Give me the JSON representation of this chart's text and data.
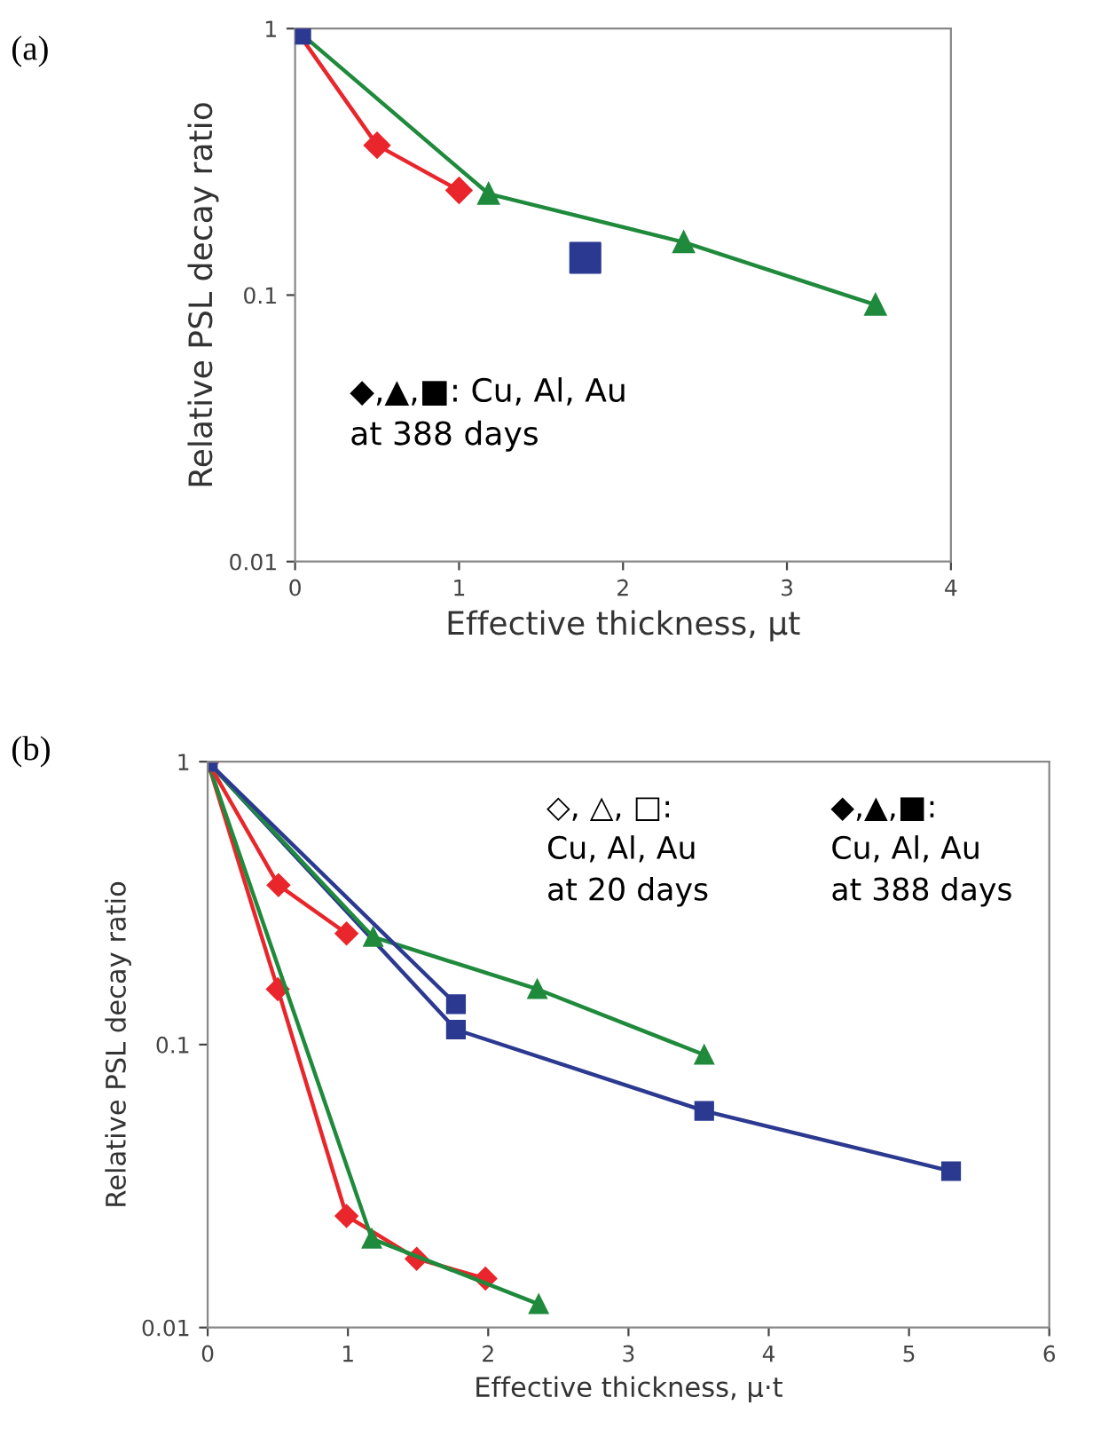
{
  "chart_data": [
    {
      "type": "line",
      "xlabel": "Effective thickness, μt",
      "ylabel": "Relative PSL decay ratio",
      "log": "y",
      "xlim": [
        0,
        4
      ],
      "xticks": [
        0,
        1,
        2,
        3,
        4
      ],
      "ylim": [
        0.01,
        1
      ],
      "yticks": [
        0.01,
        0.1,
        1
      ],
      "grid": false,
      "annotations": [
        "(a)",
        "◆,▲,■: Cu, Al, Au\nat 388 days"
      ],
      "series": [
        {
          "marker": "diamond",
          "color": "#e8262b",
          "x": [
            0,
            0.5,
            1.0
          ],
          "values": [
            1,
            0.365,
            0.247
          ]
        },
        {
          "marker": "triangle",
          "color": "#1f8a3c",
          "x": [
            0,
            1.18,
            2.37,
            3.54
          ],
          "values": [
            1,
            0.24,
            0.158,
            0.092
          ]
        },
        {
          "type": "scatter",
          "marker": "square",
          "color": "#2b3990",
          "x": [
            0,
            1.77
          ],
          "values": [
            1,
            0.138
          ]
        }
      ]
    },
    {
      "type": "line",
      "xlabel": "Effective thickness, μ·t",
      "ylabel": "Relative PSL decay ratio",
      "log": "y",
      "xlim": [
        0,
        6
      ],
      "xticks": [
        0,
        1,
        2,
        3,
        4,
        5,
        6
      ],
      "ylim": [
        0.01,
        1
      ],
      "yticks": [
        0.01,
        0.1,
        1
      ],
      "grid": false,
      "annotations": [
        "(b)",
        "◇, △, □:\nCu, Al, Au\nat 20 days",
        "◆,▲,■:\nCu, Al, Au\nat 388 days"
      ],
      "series": [
        {
          "marker": "diamond",
          "color": "#e8262b",
          "x": [
            0,
            0.5,
            0.99,
            1.49,
            1.98
          ],
          "values": [
            1,
            0.157,
            0.0248,
            0.0175,
            0.0149
          ]
        },
        {
          "marker": "triangle",
          "color": "#1f8a3c",
          "x": [
            0,
            1.17,
            2.36
          ],
          "values": [
            1,
            0.0206,
            0.0121
          ]
        },
        {
          "marker": "square",
          "color": "#2b3990",
          "x": [
            0,
            1.77,
            3.54,
            5.3
          ],
          "values": [
            1,
            0.113,
            0.0583,
            0.0357
          ]
        },
        {
          "marker": "diamond",
          "color": "#e8262b",
          "x": [
            0,
            0.505,
            0.99
          ],
          "values": [
            1,
            0.366,
            0.247
          ]
        },
        {
          "marker": "triangle",
          "color": "#1f8a3c",
          "x": [
            0,
            1.18,
            2.35,
            3.54
          ],
          "values": [
            1,
            0.24,
            0.157,
            0.092
          ]
        },
        {
          "marker": "square",
          "color": "#2b3990",
          "x": [
            0,
            1.77
          ],
          "values": [
            1,
            0.139
          ]
        }
      ]
    }
  ]
}
